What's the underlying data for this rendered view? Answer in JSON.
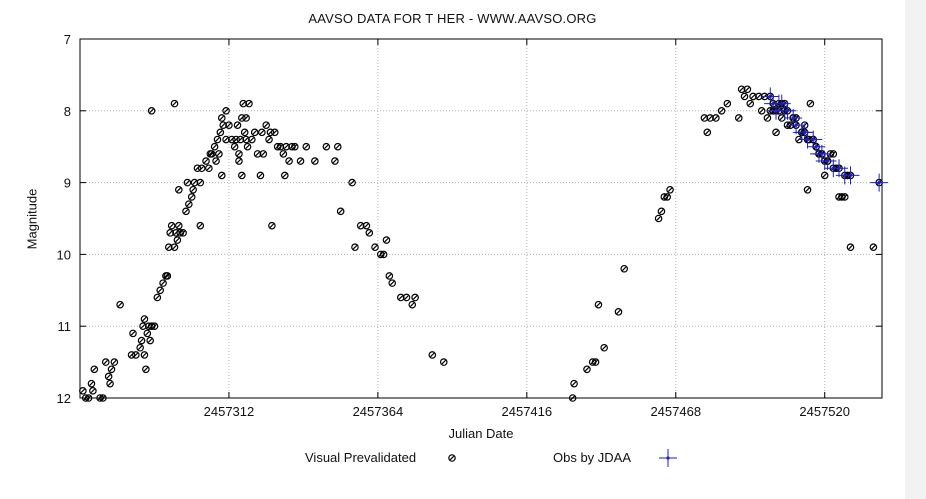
{
  "chart_data": {
    "type": "scatter",
    "title": "AAVSO DATA FOR T HER - WWW.AAVSO.ORG",
    "xlabel": "Julian Date",
    "ylabel": "Magnitude",
    "xlim": [
      2457260,
      2457540
    ],
    "ylim": [
      12,
      7
    ],
    "grid": true,
    "xticks": [
      2457312,
      2457364,
      2457416,
      2457468,
      2457520
    ],
    "yticks": [
      7,
      8,
      9,
      10,
      11,
      12
    ],
    "legend": "bottom",
    "series": [
      {
        "name": "Visual Prevalidated",
        "marker": "circle",
        "color": "#000000",
        "points": [
          [
            2457261,
            11.9
          ],
          [
            2457262,
            12.0
          ],
          [
            2457263,
            12.0
          ],
          [
            2457264,
            11.8
          ],
          [
            2457264.5,
            11.9
          ],
          [
            2457265,
            11.6
          ],
          [
            2457267,
            12.0
          ],
          [
            2457268,
            12.0
          ],
          [
            2457269,
            11.5
          ],
          [
            2457270,
            11.7
          ],
          [
            2457270.5,
            11.8
          ],
          [
            2457271,
            11.6
          ],
          [
            2457272,
            11.5
          ],
          [
            2457274,
            10.7
          ],
          [
            2457278,
            11.4
          ],
          [
            2457278.5,
            11.1
          ],
          [
            2457279.5,
            11.4
          ],
          [
            2457281,
            11.3
          ],
          [
            2457281.5,
            11.2
          ],
          [
            2457282,
            11.0
          ],
          [
            2457282.5,
            11.4
          ],
          [
            2457282.5,
            10.9
          ],
          [
            2457283,
            11.6
          ],
          [
            2457283.5,
            11.1
          ],
          [
            2457284,
            11.0
          ],
          [
            2457284.5,
            11.2
          ],
          [
            2457285,
            11.0
          ],
          [
            2457285,
            8.0
          ],
          [
            2457286,
            11.0
          ],
          [
            2457287,
            10.6
          ],
          [
            2457288,
            10.5
          ],
          [
            2457289,
            10.4
          ],
          [
            2457290,
            10.3
          ],
          [
            2457290.5,
            10.3
          ],
          [
            2457291,
            9.9
          ],
          [
            2457291.5,
            9.7
          ],
          [
            2457292,
            9.6
          ],
          [
            2457293,
            9.9
          ],
          [
            2457293,
            7.9
          ],
          [
            2457293.5,
            9.7
          ],
          [
            2457294,
            9.8
          ],
          [
            2457294.5,
            9.6
          ],
          [
            2457294.5,
            9.1
          ],
          [
            2457295,
            9.7
          ],
          [
            2457296,
            9.7
          ],
          [
            2457297,
            9.4
          ],
          [
            2457297.5,
            9.0
          ],
          [
            2457298,
            9.3
          ],
          [
            2457299,
            9.2
          ],
          [
            2457299.5,
            9.1
          ],
          [
            2457300,
            9.0
          ],
          [
            2457301,
            8.8
          ],
          [
            2457302,
            9.6
          ],
          [
            2457302,
            9.0
          ],
          [
            2457302.5,
            8.8
          ],
          [
            2457304,
            8.7
          ],
          [
            2457305,
            8.8
          ],
          [
            2457305.5,
            8.6
          ],
          [
            2457306,
            8.6
          ],
          [
            2457307,
            8.5
          ],
          [
            2457307.5,
            8.7
          ],
          [
            2457308,
            8.4
          ],
          [
            2457308.5,
            8.6
          ],
          [
            2457309,
            8.3
          ],
          [
            2457309.5,
            8.9
          ],
          [
            2457309.5,
            8.1
          ],
          [
            2457310,
            8.2
          ],
          [
            2457311,
            8.4
          ],
          [
            2457311,
            8.0
          ],
          [
            2457312,
            8.2
          ],
          [
            2457313,
            8.4
          ],
          [
            2457314,
            8.5
          ],
          [
            2457314.5,
            8.4
          ],
          [
            2457315,
            8.2
          ],
          [
            2457315.5,
            8.6
          ],
          [
            2457315.5,
            8.7
          ],
          [
            2457316,
            8.4
          ],
          [
            2457316.5,
            8.9
          ],
          [
            2457316.5,
            8.1
          ],
          [
            2457317,
            7.9
          ],
          [
            2457317.5,
            8.3
          ],
          [
            2457318,
            8.1
          ],
          [
            2457318,
            8.4
          ],
          [
            2457318.5,
            8.5
          ],
          [
            2457319,
            7.9
          ],
          [
            2457320,
            8.4
          ],
          [
            2457321,
            8.3
          ],
          [
            2457322,
            8.6
          ],
          [
            2457323,
            8.9
          ],
          [
            2457323.5,
            8.3
          ],
          [
            2457324,
            8.6
          ],
          [
            2457325,
            8.2
          ],
          [
            2457326,
            8.4
          ],
          [
            2457326.5,
            8.3
          ],
          [
            2457327,
            9.6
          ],
          [
            2457328,
            8.3
          ],
          [
            2457329,
            8.5
          ],
          [
            2457330,
            8.5
          ],
          [
            2457331,
            8.6
          ],
          [
            2457331.5,
            8.9
          ],
          [
            2457332,
            8.5
          ],
          [
            2457333,
            8.7
          ],
          [
            2457334,
            8.5
          ],
          [
            2457335,
            8.5
          ],
          [
            2457337,
            8.7
          ],
          [
            2457339,
            8.5
          ],
          [
            2457342,
            8.7
          ],
          [
            2457346,
            8.5
          ],
          [
            2457349,
            8.7
          ],
          [
            2457350,
            8.5
          ],
          [
            2457351,
            9.4
          ],
          [
            2457355,
            9.0
          ],
          [
            2457356,
            9.9
          ],
          [
            2457358,
            9.6
          ],
          [
            2457360,
            9.6
          ],
          [
            2457361,
            9.7
          ],
          [
            2457363,
            9.9
          ],
          [
            2457365,
            10.0
          ],
          [
            2457366,
            10.0
          ],
          [
            2457367,
            9.8
          ],
          [
            2457368,
            10.3
          ],
          [
            2457369,
            10.4
          ],
          [
            2457372,
            10.6
          ],
          [
            2457374,
            10.6
          ],
          [
            2457376,
            10.7
          ],
          [
            2457377,
            10.6
          ],
          [
            2457383,
            11.4
          ],
          [
            2457387,
            11.5
          ],
          [
            2457432,
            12.0
          ],
          [
            2457432.5,
            11.8
          ],
          [
            2457437,
            11.6
          ],
          [
            2457439,
            11.5
          ],
          [
            2457440,
            11.5
          ],
          [
            2457441,
            10.7
          ],
          [
            2457443,
            11.3
          ],
          [
            2457448,
            10.8
          ],
          [
            2457450,
            10.2
          ],
          [
            2457462,
            9.5
          ],
          [
            2457463,
            9.4
          ],
          [
            2457464,
            9.2
          ],
          [
            2457465,
            9.2
          ],
          [
            2457466,
            9.1
          ],
          [
            2457478,
            8.1
          ],
          [
            2457479,
            8.3
          ],
          [
            2457480,
            8.1
          ],
          [
            2457482,
            8.1
          ],
          [
            2457484,
            8.0
          ],
          [
            2457486,
            7.9
          ],
          [
            2457490,
            8.1
          ],
          [
            2457491,
            7.7
          ],
          [
            2457492,
            7.8
          ],
          [
            2457493,
            7.7
          ],
          [
            2457494,
            7.9
          ],
          [
            2457495,
            7.8
          ],
          [
            2457497,
            7.8
          ],
          [
            2457498,
            8.0
          ],
          [
            2457499,
            7.8
          ],
          [
            2457500,
            8.1
          ],
          [
            2457501,
            8.0
          ],
          [
            2457502,
            8.0
          ],
          [
            2457503,
            8.3
          ],
          [
            2457504,
            8.0
          ],
          [
            2457505,
            8.1
          ],
          [
            2457506,
            7.9
          ],
          [
            2457507,
            8.2
          ],
          [
            2457508,
            8.2
          ],
          [
            2457509,
            8.1
          ],
          [
            2457510,
            8.1
          ],
          [
            2457511,
            8.4
          ],
          [
            2457512,
            8.3
          ],
          [
            2457513,
            8.2
          ],
          [
            2457514,
            9.1
          ],
          [
            2457514.5,
            8.4
          ],
          [
            2457515,
            7.9
          ],
          [
            2457516,
            8.4
          ],
          [
            2457517,
            8.5
          ],
          [
            2457518,
            8.6
          ],
          [
            2457519,
            8.6
          ],
          [
            2457520,
            8.9
          ],
          [
            2457521,
            8.7
          ],
          [
            2457522,
            8.6
          ],
          [
            2457523,
            8.6
          ],
          [
            2457524,
            8.8
          ],
          [
            2457525,
            9.2
          ],
          [
            2457526,
            9.2
          ],
          [
            2457527,
            9.2
          ],
          [
            2457528,
            8.9
          ],
          [
            2457529,
            9.9
          ],
          [
            2457537,
            9.9
          ]
        ]
      },
      {
        "name": "Obs by JDAA",
        "marker": "cross",
        "color": "#1e1ecc",
        "points": [
          [
            2457501,
            7.8
          ],
          [
            2457502,
            7.9
          ],
          [
            2457503,
            8.0
          ],
          [
            2457504,
            7.9
          ],
          [
            2457505,
            7.9
          ],
          [
            2457506,
            8.0
          ],
          [
            2457507,
            8.0
          ],
          [
            2457509,
            8.1
          ],
          [
            2457510,
            8.2
          ],
          [
            2457512,
            8.3
          ],
          [
            2457513,
            8.3
          ],
          [
            2457514,
            8.4
          ],
          [
            2457516,
            8.4
          ],
          [
            2457517,
            8.5
          ],
          [
            2457518,
            8.6
          ],
          [
            2457519,
            8.6
          ],
          [
            2457520,
            8.7
          ],
          [
            2457521,
            8.7
          ],
          [
            2457523,
            8.8
          ],
          [
            2457525,
            8.8
          ],
          [
            2457527,
            8.9
          ],
          [
            2457529,
            8.9
          ],
          [
            2457539,
            9.0
          ]
        ]
      }
    ]
  }
}
